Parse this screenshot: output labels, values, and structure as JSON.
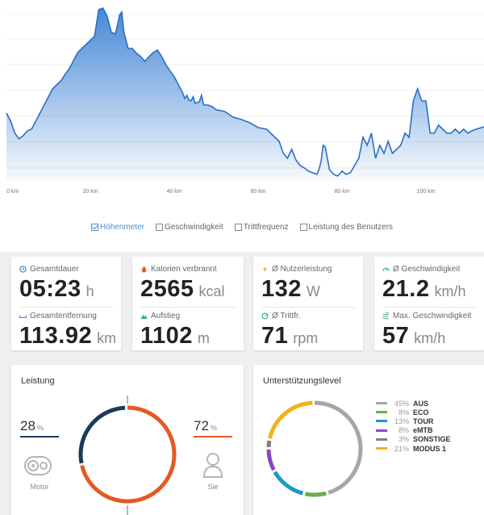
{
  "chart_data": {
    "type": "area",
    "xlabel": "",
    "ylabel": "",
    "x_ticks": [
      "0 km",
      "20 km",
      "40 km",
      "60 km",
      "80 km",
      "100 km"
    ],
    "x_tick_values": [
      0,
      20,
      40,
      60,
      80,
      100
    ],
    "xlim": [
      0,
      113.92
    ],
    "grid": true,
    "fill_color": "#3d82d4",
    "line_color": "#2b6fc4",
    "series": [
      {
        "values": [
          [
            0,
            140
          ],
          [
            1,
            150
          ],
          [
            2,
            165
          ],
          [
            3,
            172
          ],
          [
            4,
            168
          ],
          [
            5,
            162
          ],
          [
            6,
            160
          ],
          [
            7,
            150
          ],
          [
            8,
            140
          ],
          [
            9,
            130
          ],
          [
            10,
            120
          ],
          [
            11,
            110
          ],
          [
            12,
            105
          ],
          [
            13,
            100
          ],
          [
            14,
            92
          ],
          [
            15,
            85
          ],
          [
            16,
            75
          ],
          [
            17,
            65
          ],
          [
            18,
            60
          ],
          [
            19,
            55
          ],
          [
            20,
            50
          ],
          [
            21,
            45
          ],
          [
            22,
            12
          ],
          [
            23,
            10
          ],
          [
            24,
            20
          ],
          [
            25,
            40
          ],
          [
            26,
            42
          ],
          [
            26.5,
            30
          ],
          [
            27,
            18
          ],
          [
            27.5,
            15
          ],
          [
            28,
            40
          ],
          [
            29,
            60
          ],
          [
            30,
            60
          ],
          [
            31,
            66
          ],
          [
            32,
            70
          ],
          [
            33,
            76
          ],
          [
            34,
            70
          ],
          [
            35,
            65
          ],
          [
            36,
            62
          ],
          [
            37,
            70
          ],
          [
            38,
            80
          ],
          [
            39,
            88
          ],
          [
            40,
            95
          ],
          [
            41,
            105
          ],
          [
            42,
            115
          ],
          [
            42.5,
            122
          ],
          [
            43,
            118
          ],
          [
            43.5,
            124
          ],
          [
            44,
            125
          ],
          [
            44.5,
            120
          ],
          [
            45,
            128
          ],
          [
            46,
            126
          ],
          [
            46.5,
            118
          ],
          [
            47,
            130
          ],
          [
            48,
            130
          ],
          [
            49,
            132
          ],
          [
            50,
            136
          ],
          [
            52,
            138
          ],
          [
            54,
            145
          ],
          [
            56,
            148
          ],
          [
            58,
            152
          ],
          [
            60,
            158
          ],
          [
            62,
            160
          ],
          [
            64,
            170
          ],
          [
            65,
            175
          ],
          [
            66,
            190
          ],
          [
            67,
            196
          ],
          [
            68,
            185
          ],
          [
            69,
            198
          ],
          [
            70,
            205
          ],
          [
            71,
            208
          ],
          [
            72,
            212
          ],
          [
            73,
            214
          ],
          [
            74,
            216
          ],
          [
            74.5,
            210
          ],
          [
            75,
            200
          ],
          [
            75.5,
            180
          ],
          [
            76,
            182
          ],
          [
            77,
            210
          ],
          [
            78,
            216
          ],
          [
            79,
            218
          ],
          [
            80,
            212
          ],
          [
            81,
            216
          ],
          [
            82,
            214
          ],
          [
            83,
            205
          ],
          [
            84,
            196
          ],
          [
            85,
            170
          ],
          [
            86,
            180
          ],
          [
            87,
            165
          ],
          [
            88,
            196
          ],
          [
            89,
            180
          ],
          [
            90,
            190
          ],
          [
            91,
            175
          ],
          [
            92,
            190
          ],
          [
            93,
            185
          ],
          [
            94,
            180
          ],
          [
            95,
            165
          ],
          [
            96,
            170
          ],
          [
            97,
            125
          ],
          [
            98,
            110
          ],
          [
            99,
            125
          ],
          [
            100,
            125
          ],
          [
            101,
            165
          ],
          [
            102,
            165
          ],
          [
            103,
            155
          ],
          [
            104,
            160
          ],
          [
            105,
            165
          ],
          [
            106,
            165
          ],
          [
            107,
            160
          ],
          [
            108,
            165
          ],
          [
            109,
            160
          ],
          [
            110,
            165
          ],
          [
            111,
            162
          ],
          [
            112,
            160
          ],
          [
            113.92,
            157
          ]
        ]
      }
    ]
  },
  "legend": {
    "items": [
      {
        "label": "Höhenmeter",
        "active": true
      },
      {
        "label": "Geschwindigkeit",
        "active": false
      },
      {
        "label": "Trittfrequenz",
        "active": false
      },
      {
        "label": "Leistung des Benutzers",
        "active": false
      }
    ]
  },
  "stats": {
    "duration": {
      "label": "Gesamtdauer",
      "value": "05:23",
      "unit": "h",
      "icon": "clock-icon"
    },
    "distance": {
      "label": "Gesamtentfernung",
      "value": "113.92",
      "unit": "km",
      "icon": "distance-icon"
    },
    "calories": {
      "label": "Kalorien verbrannt",
      "value": "2565",
      "unit": "kcal",
      "icon": "flame-icon"
    },
    "ascent": {
      "label": "Aufstieg",
      "value": "1102",
      "unit": "m",
      "icon": "mountain-icon"
    },
    "power": {
      "label": "Ø Nutzerleistung",
      "value": "132",
      "unit": "W",
      "icon": "lightning-icon"
    },
    "cadence": {
      "label": "Ø Trittfr.",
      "value": "71",
      "unit": "rpm",
      "icon": "cadence-icon"
    },
    "avg_speed": {
      "label": "Ø Geschwindigkeit",
      "value": "21.2",
      "unit": "km/h",
      "icon": "speedometer-icon"
    },
    "max_speed": {
      "label": "Max. Geschwindigkeit",
      "value": "57",
      "unit": "km/h",
      "icon": "wind-icon"
    }
  },
  "leistung": {
    "title": "Leistung",
    "motor": {
      "value": "28",
      "symbol": "%",
      "label": "Motor",
      "fraction": 0.28,
      "color": "#1b3a5c"
    },
    "sie": {
      "value": "72",
      "symbol": "%",
      "label": "Sie",
      "fraction": 0.72,
      "color": "#e35a25"
    }
  },
  "support": {
    "title": "Unterstützungslevel",
    "levels": [
      {
        "pct": "45%",
        "name": "AUS",
        "value": 45,
        "color": "#a6a6a6"
      },
      {
        "pct": "8%",
        "name": "ECO",
        "value": 8,
        "color": "#6ab04c"
      },
      {
        "pct": "13%",
        "name": "TOUR",
        "value": 13,
        "color": "#1a9bc6"
      },
      {
        "pct": "8%",
        "name": "eMTB",
        "value": 8,
        "color": "#8e44c4"
      },
      {
        "pct": "3%",
        "name": "SONSTIGE",
        "value": 3,
        "color": "#7f7f7f"
      },
      {
        "pct": "21%",
        "name": "MODUS 1",
        "value": 21,
        "color": "#f0b21a"
      }
    ]
  }
}
